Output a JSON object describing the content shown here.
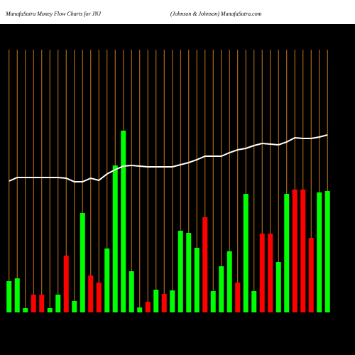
{
  "chart_data": {
    "type": "bar",
    "title": "MunafaSutra  Money Flow  Charts for JNJ",
    "subtitle": "(Johnson  & Johnson) MunafaSutra.com",
    "categories": [
      null,
      null,
      null,
      null,
      null,
      null,
      null,
      null,
      null,
      null,
      null,
      null,
      null,
      null,
      null,
      null,
      null,
      null,
      null,
      null,
      null,
      null,
      null,
      null,
      null,
      null,
      null,
      null,
      null,
      null,
      null,
      null,
      null,
      null,
      null,
      null,
      null,
      null,
      null,
      null
    ],
    "values": [
      44,
      48,
      6,
      25,
      25,
      6,
      25,
      80,
      16,
      140,
      52,
      42,
      90,
      207,
      256,
      58,
      7,
      15,
      32,
      26,
      31,
      115,
      112,
      91,
      134,
      30,
      65,
      86,
      42,
      167,
      30,
      111,
      111,
      71,
      167,
      173,
      173,
      105,
      169,
      171
    ],
    "colors": [
      "#00ff00",
      "#00ff00",
      "#00ff00",
      "#ff0000",
      "#ff0000",
      "#00ff00",
      "#00ff00",
      "#ff0000",
      "#00ff00",
      "#00ff00",
      "#ff0000",
      "#ff0000",
      "#00ff00",
      "#00ff00",
      "#00ff00",
      "#00ff00",
      "#00ff00",
      "#ff0000",
      "#00ff00",
      "#ff0000",
      "#00ff00",
      "#00ff00",
      "#00ff00",
      "#00ff00",
      "#ff0000",
      "#00ff00",
      "#00ff00",
      "#00ff00",
      "#ff0000",
      "#00ff00",
      "#00ff00",
      "#ff0000",
      "#ff0000",
      "#00ff00",
      "#00ff00",
      "#ff0000",
      "#ff0000",
      "#ff0000",
      "#00ff00",
      "#00ff00"
    ],
    "line": {
      "color": "#ffffff",
      "values": [
        185,
        190,
        190,
        190,
        190,
        190,
        190,
        189,
        184,
        184,
        189,
        186,
        195,
        201,
        206,
        207,
        206,
        205,
        205,
        205,
        205,
        208,
        211,
        215,
        220,
        220,
        220,
        225,
        229,
        231,
        235,
        238,
        237,
        236,
        240,
        246,
        245,
        245,
        247,
        250
      ]
    },
    "ylim": [
      0,
      270
    ],
    "grid_color": "#c8781e"
  }
}
